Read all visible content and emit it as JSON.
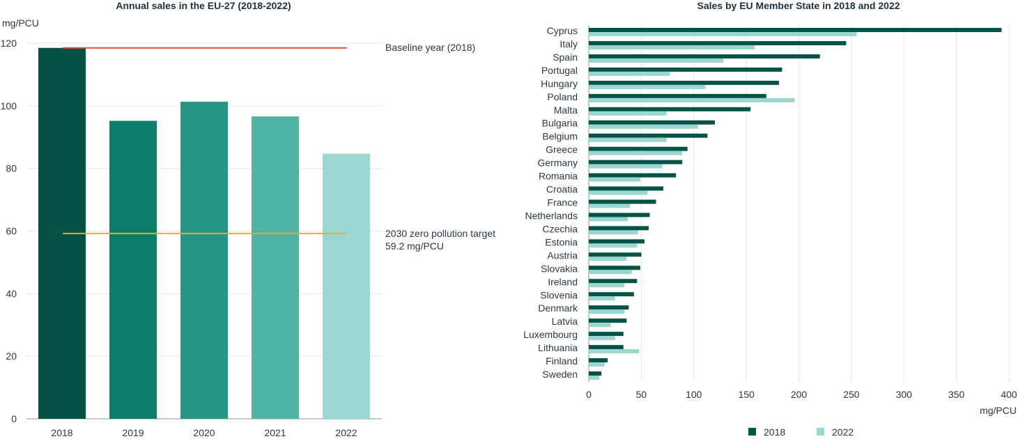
{
  "chart_data": [
    {
      "type": "bar",
      "title": "Annual sales in the EU-27 (2018-2022)",
      "ylabel": "mg/PCU",
      "categories": [
        "2018",
        "2019",
        "2020",
        "2021",
        "2022"
      ],
      "values": [
        118.5,
        95.2,
        101.3,
        96.6,
        84.7
      ],
      "colors": [
        "#045346",
        "#0b7d6b",
        "#279585",
        "#4fb3a5",
        "#9bd6d0"
      ],
      "ylim": [
        0,
        120
      ],
      "yticks": [
        "0",
        "20",
        "40",
        "60",
        "80",
        "100",
        "120"
      ],
      "grid": true,
      "reference_lines": [
        {
          "value": 118.5,
          "label": [
            "Baseline year (2018)"
          ],
          "color": "#e0553a"
        },
        {
          "value": 59.2,
          "label": [
            "2030 zero pollution target",
            "59.2 mg/PCU"
          ],
          "color": "#f0a82a"
        }
      ]
    },
    {
      "type": "bar",
      "orientation": "horizontal",
      "title": "Sales by EU Member State in 2018 and 2022",
      "xlabel": "mg/PCU",
      "xlim": [
        0,
        400
      ],
      "xticks": [
        "0",
        "50",
        "100",
        "150",
        "200",
        "250",
        "300",
        "350",
        "400"
      ],
      "grid": true,
      "legend_position": "bottom",
      "categories": [
        "Cyprus",
        "Italy",
        "Spain",
        "Portugal",
        "Hungary",
        "Poland",
        "Malta",
        "Bulgaria",
        "Belgium",
        "Greece",
        "Germany",
        "Romania",
        "Croatia",
        "France",
        "Netherlands",
        "Czechia",
        "Estonia",
        "Austria",
        "Slovakia",
        "Ireland",
        "Slovenia",
        "Denmark",
        "Latvia",
        "Luxembourg",
        "Lithuania",
        "Finland",
        "Sweden"
      ],
      "series": [
        {
          "name": "2018",
          "color": "#045346",
          "values": [
            393,
            245,
            220,
            184,
            181,
            169,
            154,
            120,
            113,
            94,
            89,
            83,
            71,
            64,
            58,
            57,
            53,
            50,
            49,
            46,
            43,
            38,
            36,
            33,
            33,
            18,
            12
          ]
        },
        {
          "name": "2022",
          "color": "#9bd6d0",
          "values": [
            255,
            158,
            128,
            77,
            111,
            196,
            74,
            104,
            74,
            89,
            70,
            49,
            56,
            39,
            37,
            47,
            46,
            36,
            41,
            34,
            25,
            34,
            21,
            25,
            48,
            15,
            10
          ]
        }
      ]
    }
  ]
}
